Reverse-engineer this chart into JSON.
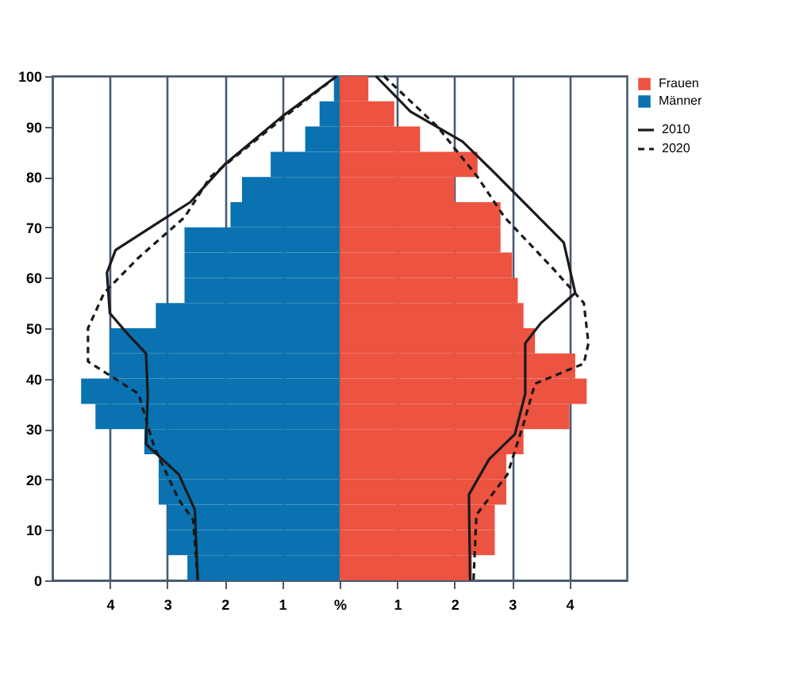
{
  "chart_data": {
    "type": "bar",
    "orientation": "horizontal",
    "stacked": true,
    "x": [
      2.5,
      7.5,
      12.5,
      17.5,
      22.5,
      27.5,
      32.5,
      37.5,
      42.5,
      47.5,
      52.5,
      57.5,
      62.5,
      67.5,
      72.5,
      77.5,
      82.5,
      87.5,
      92.5,
      97.5
    ],
    "series": [
      {
        "name": "Frauen",
        "color": "#ec5340",
        "values": [
          2.3,
          2.7,
          2.7,
          2.9,
          2.9,
          3.2,
          4.0,
          4.3,
          4.1,
          3.4,
          3.2,
          3.1,
          3.0,
          2.8,
          2.8,
          2.0,
          2.4,
          1.4,
          0.95,
          0.5
        ]
      },
      {
        "name": "Männer",
        "color": "#0a72b0",
        "values": [
          -2.65,
          -3.0,
          -3.0,
          -3.15,
          -3.15,
          -3.4,
          -4.25,
          -4.5,
          -4.0,
          -4.0,
          -3.2,
          -2.7,
          -2.7,
          -2.7,
          -1.9,
          -1.7,
          -1.2,
          -0.6,
          -0.35,
          -0.1
        ]
      },
      {
        "name": "2010",
        "type": "line",
        "line_style": "solid",
        "color": "#1a1a1a",
        "x": [
          100,
          92,
          82.5,
          75,
          71,
          65.5,
          61,
          53,
          49,
          45,
          37,
          27,
          21,
          14,
          0
        ],
        "values": [
          -0.05,
          -1.0,
          -2.0,
          -2.6,
          -3.15,
          -3.9,
          -4.05,
          -4.0,
          -3.7,
          -3.37,
          -3.34,
          -3.37,
          -2.8,
          -2.52,
          -2.47
        ]
      },
      {
        "type": "line",
        "line_style": "solid",
        "color": "#1a1a1a",
        "x": [
          100,
          93,
          87,
          81,
          67,
          57,
          51,
          47,
          37,
          29,
          24,
          17,
          0
        ],
        "values": [
          0.63,
          1.23,
          2.14,
          2.68,
          3.9,
          4.1,
          3.5,
          3.23,
          3.23,
          3.05,
          2.6,
          2.25,
          2.27
        ]
      },
      {
        "name": "2020",
        "type": "line",
        "line_style": "dashed",
        "color": "#1a1a1a",
        "x": [
          100,
          92,
          80,
          72,
          64,
          57,
          50,
          43.4,
          37,
          26.5,
          16,
          12,
          0
        ],
        "values": [
          -0.05,
          -0.95,
          -2.25,
          -2.7,
          -3.5,
          -4.1,
          -4.38,
          -4.38,
          -3.5,
          -3.23,
          -2.8,
          -2.55,
          -2.47
        ]
      },
      {
        "type": "line",
        "line_style": "dashed",
        "color": "#1a1a1a",
        "x": [
          100,
          90,
          80,
          72,
          62,
          55,
          47,
          43,
          39,
          31,
          21,
          13,
          0
        ],
        "values": [
          0.77,
          1.7,
          2.4,
          2.87,
          3.7,
          4.25,
          4.33,
          4.25,
          3.4,
          3.2,
          2.92,
          2.38,
          2.33
        ]
      }
    ],
    "xlim": [
      -5,
      5
    ],
    "xticks": [
      {
        "value": -4,
        "label": "4"
      },
      {
        "value": -3,
        "label": "3"
      },
      {
        "value": -2,
        "label": "2"
      },
      {
        "value": -1,
        "label": "1"
      },
      {
        "value": 0,
        "label": "%"
      },
      1,
      2,
      3,
      4
    ],
    "ylim": [
      0,
      100
    ],
    "yticks": [
      0,
      10,
      20,
      30,
      40,
      50,
      60,
      70,
      80,
      90,
      100
    ],
    "grid": "x",
    "legend": "top right",
    "marker": "none"
  }
}
